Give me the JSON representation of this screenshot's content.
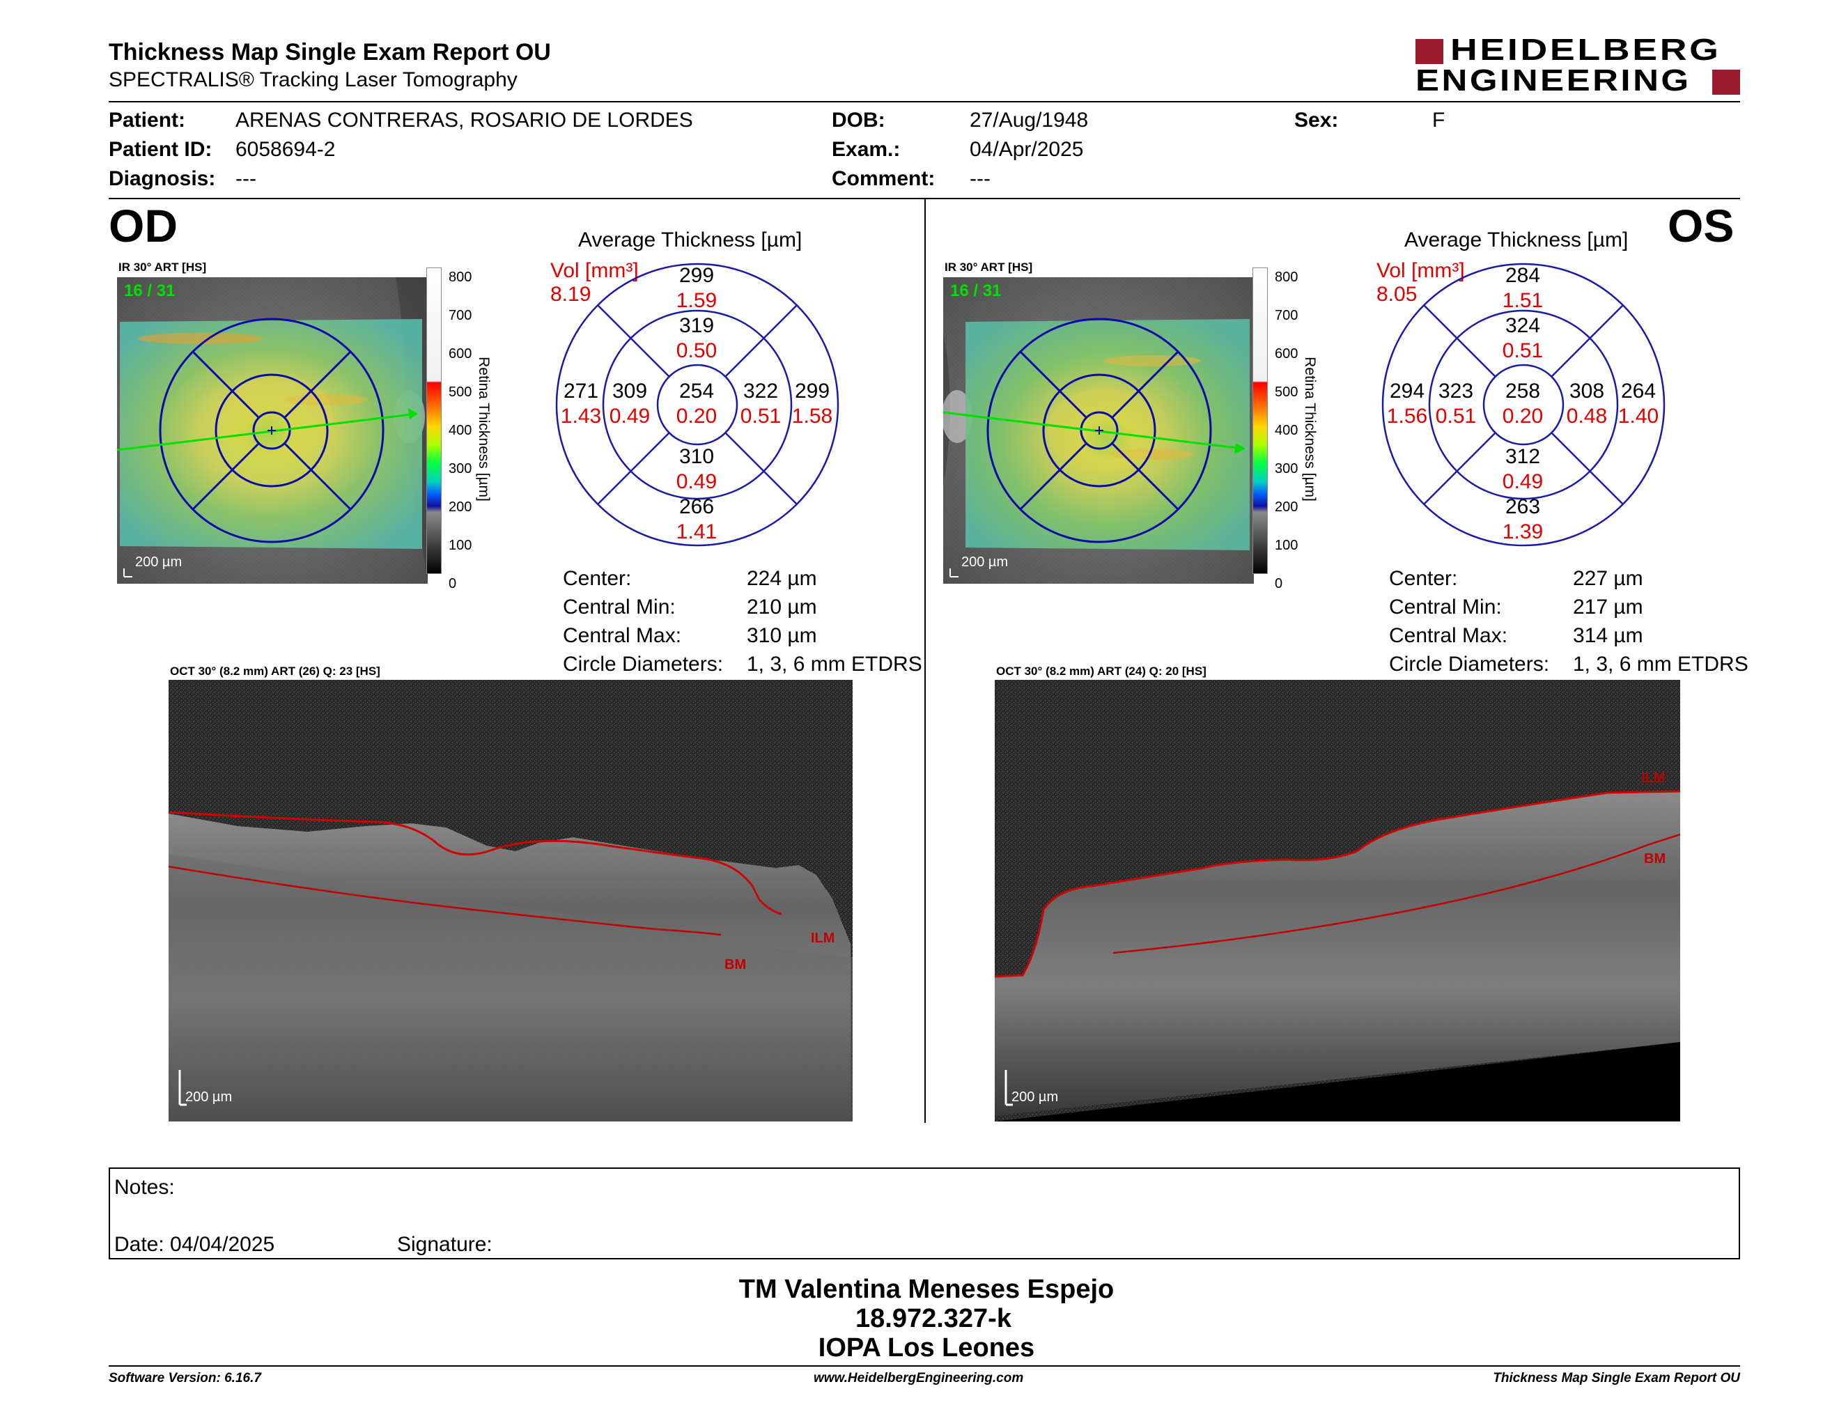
{
  "header": {
    "title": "Thickness Map Single Exam Report OU",
    "subtitle": "SPECTRALIS® Tracking Laser Tomography",
    "logo_line1": "HEIDELBERG",
    "logo_line2": "ENGINEERING"
  },
  "patient": {
    "patient_label": "Patient:",
    "patient_value": "ARENAS CONTRERAS, ROSARIO DE LORDES",
    "id_label": "Patient ID:",
    "id_value": "6058694-2",
    "diagnosis_label": "Diagnosis:",
    "diagnosis_value": "---",
    "dob_label": "DOB:",
    "dob_value": "27/Aug/1948",
    "exam_label": "Exam.:",
    "exam_value": "04/Apr/2025",
    "comment_label": "Comment:",
    "comment_value": "---",
    "sex_label": "Sex:",
    "sex_value": "F"
  },
  "scale": {
    "ticks": [
      "800",
      "700",
      "600",
      "500",
      "400",
      "300",
      "200",
      "100",
      "0"
    ],
    "axis_label": "Retina Thickness [µm]"
  },
  "od": {
    "eye": "OD",
    "ir_label": "IR 30° ART [HS]",
    "frame": "16 / 31",
    "scalebar": "200 µm",
    "chart_title": "Average Thickness [µm]",
    "vol_label": "Vol [mm³]",
    "vol_value": "8.19",
    "grid": {
      "center": [
        "254",
        "0.20"
      ],
      "inner_sup": [
        "319",
        "0.50"
      ],
      "inner_inf": [
        "310",
        "0.49"
      ],
      "inner_left": [
        "309",
        "0.49"
      ],
      "inner_right": [
        "322",
        "0.51"
      ],
      "outer_sup": [
        "299",
        "1.59"
      ],
      "outer_inf": [
        "266",
        "1.41"
      ],
      "outer_left": [
        "271",
        "1.43"
      ],
      "outer_right": [
        "299",
        "1.58"
      ]
    },
    "stats": {
      "center_label": "Center:",
      "center_value": "224 µm",
      "min_label": "Central Min:",
      "min_value": "210 µm",
      "max_label": "Central Max:",
      "max_value": "310 µm",
      "diam_label": "Circle Diameters:",
      "diam_value": "1, 3, 6 mm ETDRS"
    },
    "oct_label": "OCT 30° (8.2 mm) ART (26) Q: 23 [HS]",
    "oct_ilm": "ILM",
    "oct_bm": "BM",
    "oct_scalebar": "200 µm"
  },
  "os": {
    "eye": "OS",
    "ir_label": "IR 30° ART [HS]",
    "frame": "16 / 31",
    "scalebar": "200 µm",
    "chart_title": "Average Thickness [µm]",
    "vol_label": "Vol [mm³]",
    "vol_value": "8.05",
    "grid": {
      "center": [
        "258",
        "0.20"
      ],
      "inner_sup": [
        "324",
        "0.51"
      ],
      "inner_inf": [
        "312",
        "0.49"
      ],
      "inner_left": [
        "323",
        "0.51"
      ],
      "inner_right": [
        "308",
        "0.48"
      ],
      "outer_sup": [
        "284",
        "1.51"
      ],
      "outer_inf": [
        "263",
        "1.39"
      ],
      "outer_left": [
        "294",
        "1.56"
      ],
      "outer_right": [
        "264",
        "1.40"
      ]
    },
    "stats": {
      "center_label": "Center:",
      "center_value": "227 µm",
      "min_label": "Central Min:",
      "min_value": "217 µm",
      "max_label": "Central Max:",
      "max_value": "314 µm",
      "diam_label": "Circle Diameters:",
      "diam_value": "1, 3, 6 mm ETDRS"
    },
    "oct_label": "OCT 30° (8.2 mm) ART (24) Q: 20 [HS]",
    "oct_ilm": "ILM",
    "oct_bm": "BM",
    "oct_scalebar": "200 µm"
  },
  "notes": {
    "notes_label": "Notes:",
    "date_label": "Date: 04/04/2025",
    "signature_label": "Signature:"
  },
  "signatory": {
    "name": "TM Valentina Meneses Espejo",
    "rut": "18.972.327-k",
    "institution": "IOPA Los Leones"
  },
  "footer": {
    "software": "Software Version: 6.16.7",
    "website": "www.HeidelbergEngineering.com",
    "report": "Thickness Map Single Exam Report OU"
  },
  "colors": {
    "accent_red": "#9b1c2e",
    "grid_blue": "#1a1aa8",
    "volume_red": "#e00000",
    "fixation_green": "#00e000"
  }
}
